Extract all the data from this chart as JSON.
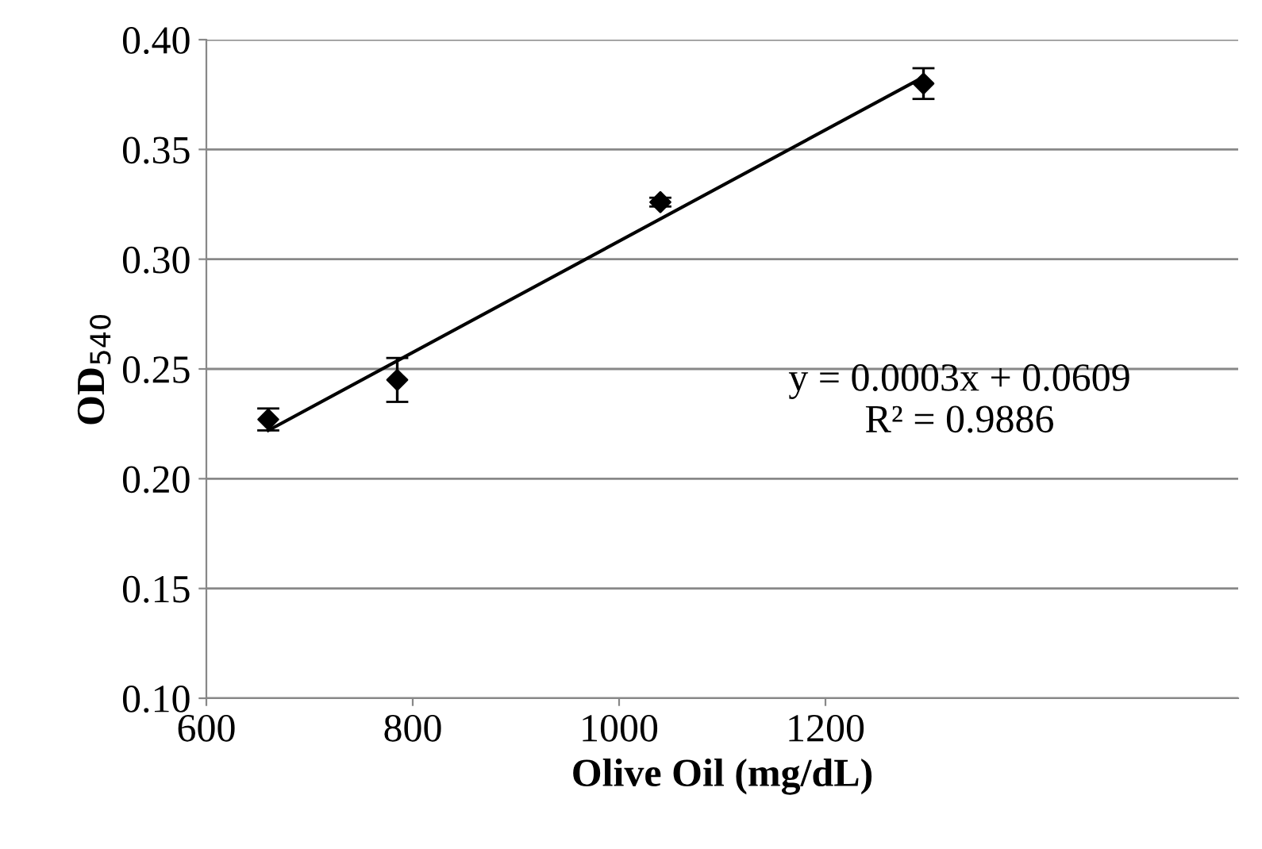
{
  "chart_data": {
    "type": "scatter",
    "xlabel": "Olive Oil (mg/dL)",
    "ylabel": "OD$_{540}$",
    "series": [
      {
        "color": "#000000",
        "marker": "diamond",
        "x": [
          660,
          785,
          1040,
          1295
        ],
        "values": [
          0.227,
          0.245,
          0.326,
          0.38
        ],
        "errors": [
          0.005,
          0.01,
          0.002,
          0.007
        ]
      },
      {
        "type": "line",
        "color": "#000000",
        "x": [
          660,
          1295
        ],
        "values": [
          0.222,
          0.383
        ]
      }
    ],
    "annotations": [
      "y = 0.0003x + 0.0609\nR² = 0.9886"
    ],
    "xlim": [
      600,
      1600
    ],
    "xticks": [
      600,
      800,
      1000,
      1200
    ],
    "ylim": [
      0.1,
      0.4
    ],
    "yticks": [
      {
        "value": 0.1,
        "label": "0.10"
      },
      {
        "value": 0.15,
        "label": "0.15"
      },
      {
        "value": 0.2,
        "label": "0.20"
      },
      {
        "value": 0.25,
        "label": "0.25"
      },
      {
        "value": 0.3,
        "label": "0.30"
      },
      {
        "value": 0.35,
        "label": "0.35"
      },
      {
        "value": 0.4,
        "label": "0.40"
      }
    ],
    "grid": "y"
  }
}
